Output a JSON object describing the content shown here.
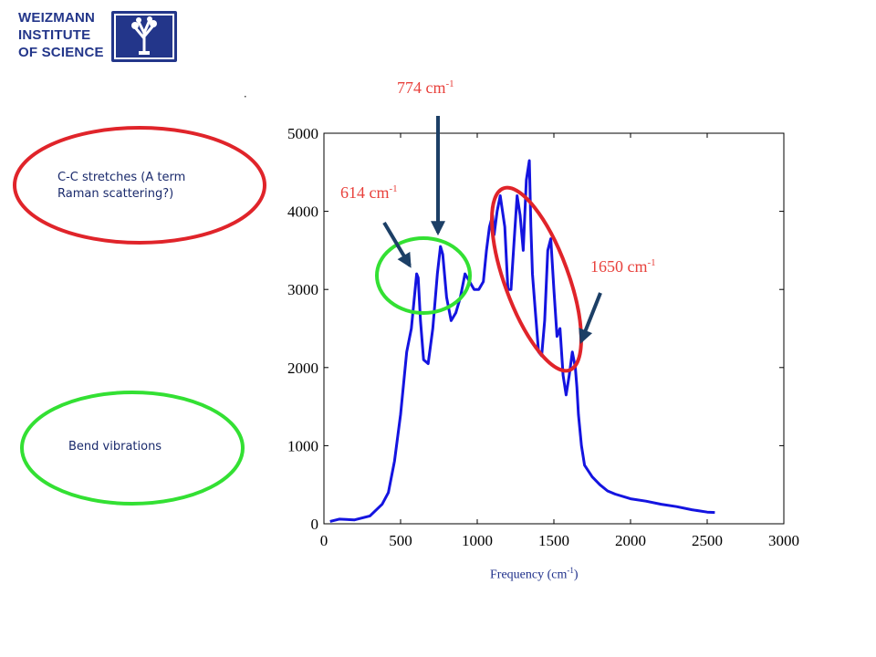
{
  "logo": {
    "lines": [
      "WEIZMANN",
      "INSTITUTE",
      "OF SCIENCE"
    ]
  },
  "notes": {
    "cc_stretch": [
      "C-C stretches (A term",
      "Raman scattering?)"
    ],
    "bend": "Bend vibrations"
  },
  "annotations": {
    "peak_774": {
      "value": "774 cm",
      "sup": "-1"
    },
    "peak_614": {
      "value": "614 cm",
      "sup": "-1"
    },
    "peak_1650": {
      "value": "1650 cm",
      "sup": "-1"
    }
  },
  "colors": {
    "series": "#1414e0",
    "red": "#e0242a",
    "green": "#33e033",
    "arrow": "#1c3f66",
    "label_red": "#e8413c"
  },
  "chart_data": {
    "type": "line",
    "title": "",
    "xlabel": "Frequency (cm",
    "xlabel_sup": "-1",
    "xlabel_end": ")",
    "ylabel": "",
    "xlim": [
      0,
      3000
    ],
    "ylim": [
      0,
      5000
    ],
    "xticks": [
      0,
      500,
      1000,
      1500,
      2000,
      2500,
      3000
    ],
    "yticks": [
      0,
      1000,
      2000,
      3000,
      4000,
      5000
    ],
    "grid": false,
    "series": [
      {
        "x": [
          40,
          100,
          200,
          300,
          380,
          420,
          460,
          500,
          540,
          570,
          590,
          605,
          615,
          630,
          650,
          680,
          710,
          740,
          760,
          775,
          800,
          830,
          860,
          890,
          920,
          950,
          980,
          1010,
          1040,
          1060,
          1080,
          1100,
          1110,
          1130,
          1150,
          1180,
          1200,
          1220,
          1240,
          1260,
          1280,
          1300,
          1320,
          1340,
          1350,
          1360,
          1380,
          1400,
          1420,
          1440,
          1460,
          1480,
          1500,
          1520,
          1540,
          1560,
          1580,
          1600,
          1620,
          1640,
          1650,
          1660,
          1680,
          1700,
          1750,
          1800,
          1850,
          1900,
          2000,
          2100,
          2200,
          2300,
          2400,
          2500,
          2550
        ],
        "y": [
          30,
          60,
          50,
          100,
          250,
          400,
          800,
          1400,
          2200,
          2500,
          2900,
          3200,
          3150,
          2600,
          2100,
          2050,
          2500,
          3200,
          3550,
          3450,
          2900,
          2600,
          2700,
          2900,
          3200,
          3100,
          3000,
          3000,
          3100,
          3500,
          3800,
          3950,
          3700,
          4000,
          4200,
          3800,
          3000,
          3000,
          3600,
          4200,
          3950,
          3500,
          4400,
          4650,
          3800,
          3200,
          2700,
          2200,
          2150,
          2600,
          3500,
          3650,
          3000,
          2400,
          2500,
          1900,
          1650,
          1900,
          2200,
          2000,
          1750,
          1400,
          1000,
          750,
          600,
          500,
          420,
          380,
          320,
          290,
          250,
          220,
          180,
          150,
          145
        ]
      }
    ]
  }
}
